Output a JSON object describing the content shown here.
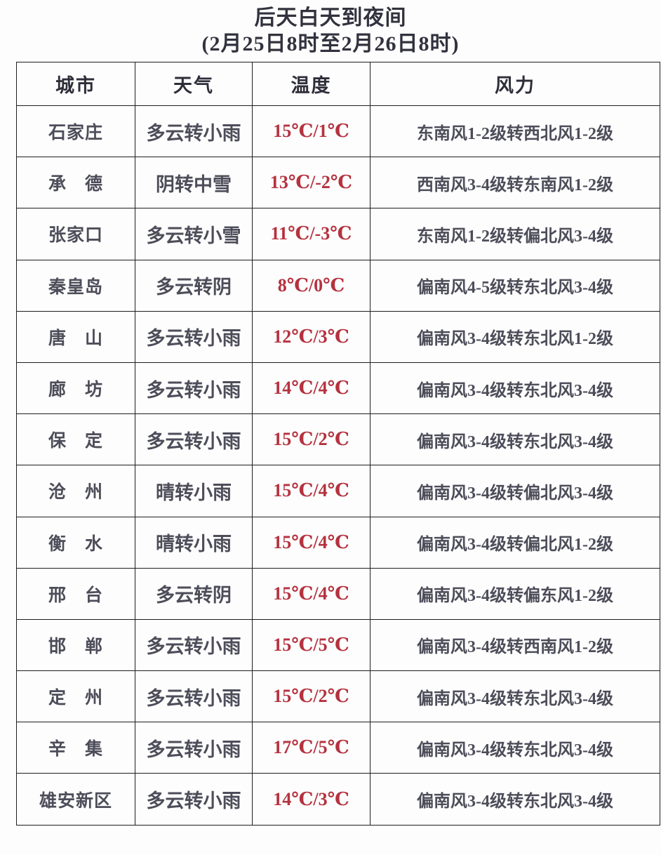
{
  "title": {
    "line1": "后天白天到夜间",
    "line2": "(2月25日8时至2月26日8时)"
  },
  "colors": {
    "temperature_text": "#b5323f",
    "body_text": "#4d4d5a",
    "table_border": "#1e1e1e",
    "background": "#fdfdfd"
  },
  "table": {
    "columns": [
      "城市",
      "天气",
      "温度",
      "风力"
    ],
    "rows": [
      {
        "city": "石家庄",
        "weather": "多云转小雨",
        "temp": "15℃/1℃",
        "wind": "东南风1-2级转西北风1-2级"
      },
      {
        "city": "承　德",
        "weather": "阴转中雪",
        "temp": "13℃/-2℃",
        "wind": "西南风3-4级转东南风1-2级"
      },
      {
        "city": "张家口",
        "weather": "多云转小雪",
        "temp": "11℃/-3℃",
        "wind": "东南风1-2级转偏北风3-4级"
      },
      {
        "city": "秦皇岛",
        "weather": "多云转阴",
        "temp": "8℃/0℃",
        "wind": "偏南风4-5级转东北风3-4级"
      },
      {
        "city": "唐　山",
        "weather": "多云转小雨",
        "temp": "12℃/3℃",
        "wind": "偏南风3-4级转东北风1-2级"
      },
      {
        "city": "廊　坊",
        "weather": "多云转小雨",
        "temp": "14℃/4℃",
        "wind": "偏南风3-4级转东北风3-4级"
      },
      {
        "city": "保　定",
        "weather": "多云转小雨",
        "temp": "15℃/2℃",
        "wind": "偏南风3-4级转东北风3-4级"
      },
      {
        "city": "沧　州",
        "weather": "晴转小雨",
        "temp": "15℃/4℃",
        "wind": "偏南风3-4级转偏北风3-4级"
      },
      {
        "city": "衡　水",
        "weather": "晴转小雨",
        "temp": "15℃/4℃",
        "wind": "偏南风3-4级转偏北风1-2级"
      },
      {
        "city": "邢　台",
        "weather": "多云转阴",
        "temp": "15℃/4℃",
        "wind": "偏南风3-4级转偏东风1-2级"
      },
      {
        "city": "邯　郸",
        "weather": "多云转小雨",
        "temp": "15℃/5℃",
        "wind": "偏南风3-4级转西南风1-2级"
      },
      {
        "city": "定　州",
        "weather": "多云转小雨",
        "temp": "15℃/2℃",
        "wind": "偏南风3-4级转东北风3-4级"
      },
      {
        "city": "辛　集",
        "weather": "多云转小雨",
        "temp": "17℃/5℃",
        "wind": "偏南风3-4级转东北风3-4级"
      },
      {
        "city": "雄安新区",
        "weather": "多云转小雨",
        "temp": "14℃/3℃",
        "wind": "偏南风3-4级转东北风3-4级"
      }
    ]
  }
}
